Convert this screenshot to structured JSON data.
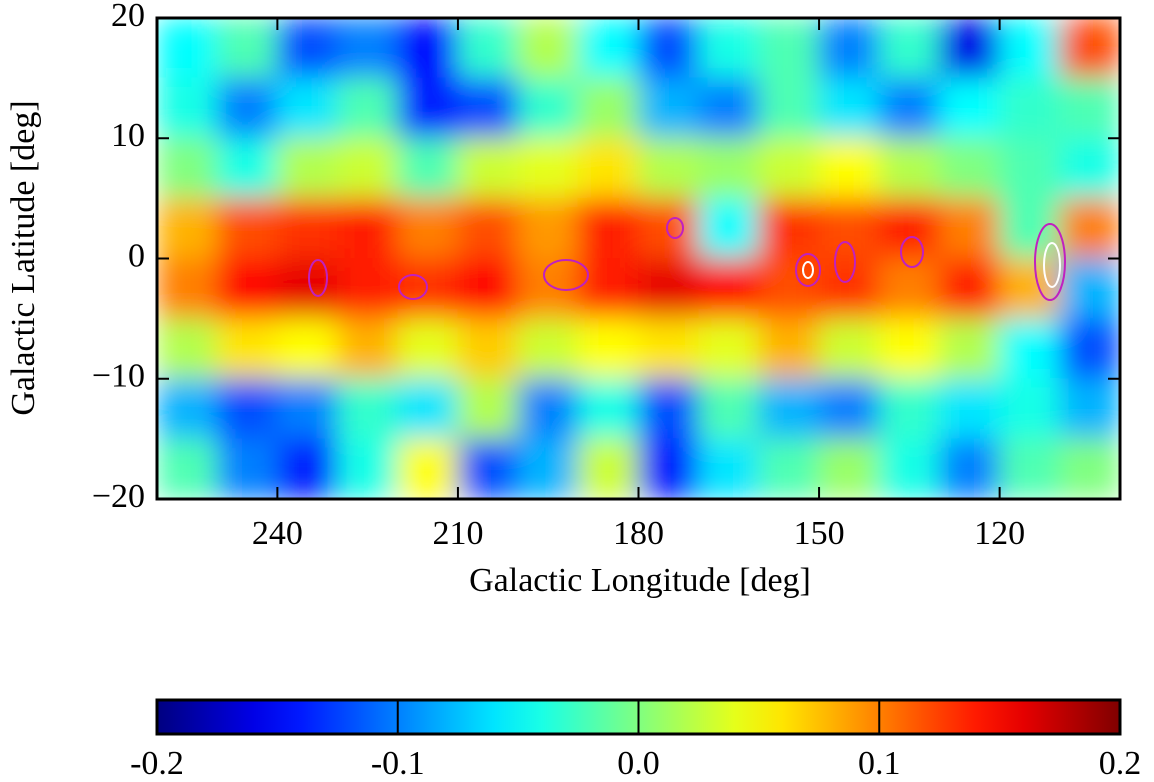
{
  "chart_data": {
    "type": "heatmap",
    "colormap": "jet",
    "x_label": "Galactic Longitude [deg]",
    "y_label": "Galactic Latitude [deg]",
    "xlim": [
      260,
      100
    ],
    "ylim": [
      -20,
      20
    ],
    "xticks": [
      240,
      210,
      180,
      150,
      120
    ],
    "yticks": [
      {
        "value": -20,
        "label": "−20"
      },
      {
        "value": -10,
        "label": "−10"
      },
      0,
      10,
      20
    ],
    "xbins": [
      260,
      250,
      240,
      230,
      220,
      210,
      200,
      190,
      180,
      170,
      160,
      150,
      140,
      130,
      120,
      110,
      100
    ],
    "ybins": [
      20,
      15,
      10,
      5,
      0,
      -5,
      -10,
      -15,
      -20
    ],
    "z": [
      [
        -0.05,
        -0.02,
        -0.12,
        -0.1,
        -0.15,
        -0.03,
        0.02,
        -0.05,
        -0.12,
        -0.04,
        -0.02,
        -0.1,
        -0.03,
        -0.16,
        -0.05,
        0.12
      ],
      [
        -0.04,
        -0.1,
        -0.06,
        -0.02,
        -0.14,
        -0.12,
        -0.03,
        0.01,
        -0.08,
        -0.1,
        -0.02,
        -0.06,
        -0.1,
        -0.05,
        -0.03,
        -0.02
      ],
      [
        0.0,
        -0.04,
        0.02,
        0.03,
        -0.02,
        0.03,
        0.04,
        0.06,
        0.02,
        0.01,
        0.03,
        0.05,
        0.02,
        0.0,
        -0.02,
        -0.04
      ],
      [
        0.08,
        0.12,
        0.13,
        0.14,
        0.1,
        0.12,
        0.09,
        0.14,
        0.12,
        -0.05,
        0.13,
        0.12,
        0.14,
        0.1,
        -0.02,
        0.1
      ],
      [
        0.1,
        0.15,
        0.16,
        0.14,
        0.13,
        0.15,
        0.1,
        0.14,
        0.16,
        0.15,
        0.12,
        0.13,
        0.1,
        0.14,
        0.08,
        -0.08
      ],
      [
        0.02,
        0.06,
        0.05,
        0.08,
        0.04,
        0.07,
        0.03,
        0.05,
        0.06,
        0.04,
        0.08,
        0.03,
        0.05,
        0.02,
        -0.05,
        -0.12
      ],
      [
        -0.08,
        -0.12,
        -0.1,
        -0.03,
        -0.06,
        0.02,
        -0.1,
        -0.04,
        -0.12,
        -0.02,
        -0.08,
        -0.1,
        -0.03,
        -0.06,
        -0.04,
        -0.08
      ],
      [
        -0.02,
        -0.1,
        -0.14,
        -0.04,
        0.05,
        -0.12,
        -0.08,
        0.03,
        -0.14,
        -0.06,
        -0.02,
        0.01,
        -0.04,
        -0.1,
        -0.02,
        0.0
      ]
    ],
    "clim": [
      -0.2,
      0.2
    ],
    "cticks": [
      -0.2,
      -0.1,
      {
        "value": 0,
        "label": "0.0"
      },
      0.1,
      0.2
    ]
  }
}
